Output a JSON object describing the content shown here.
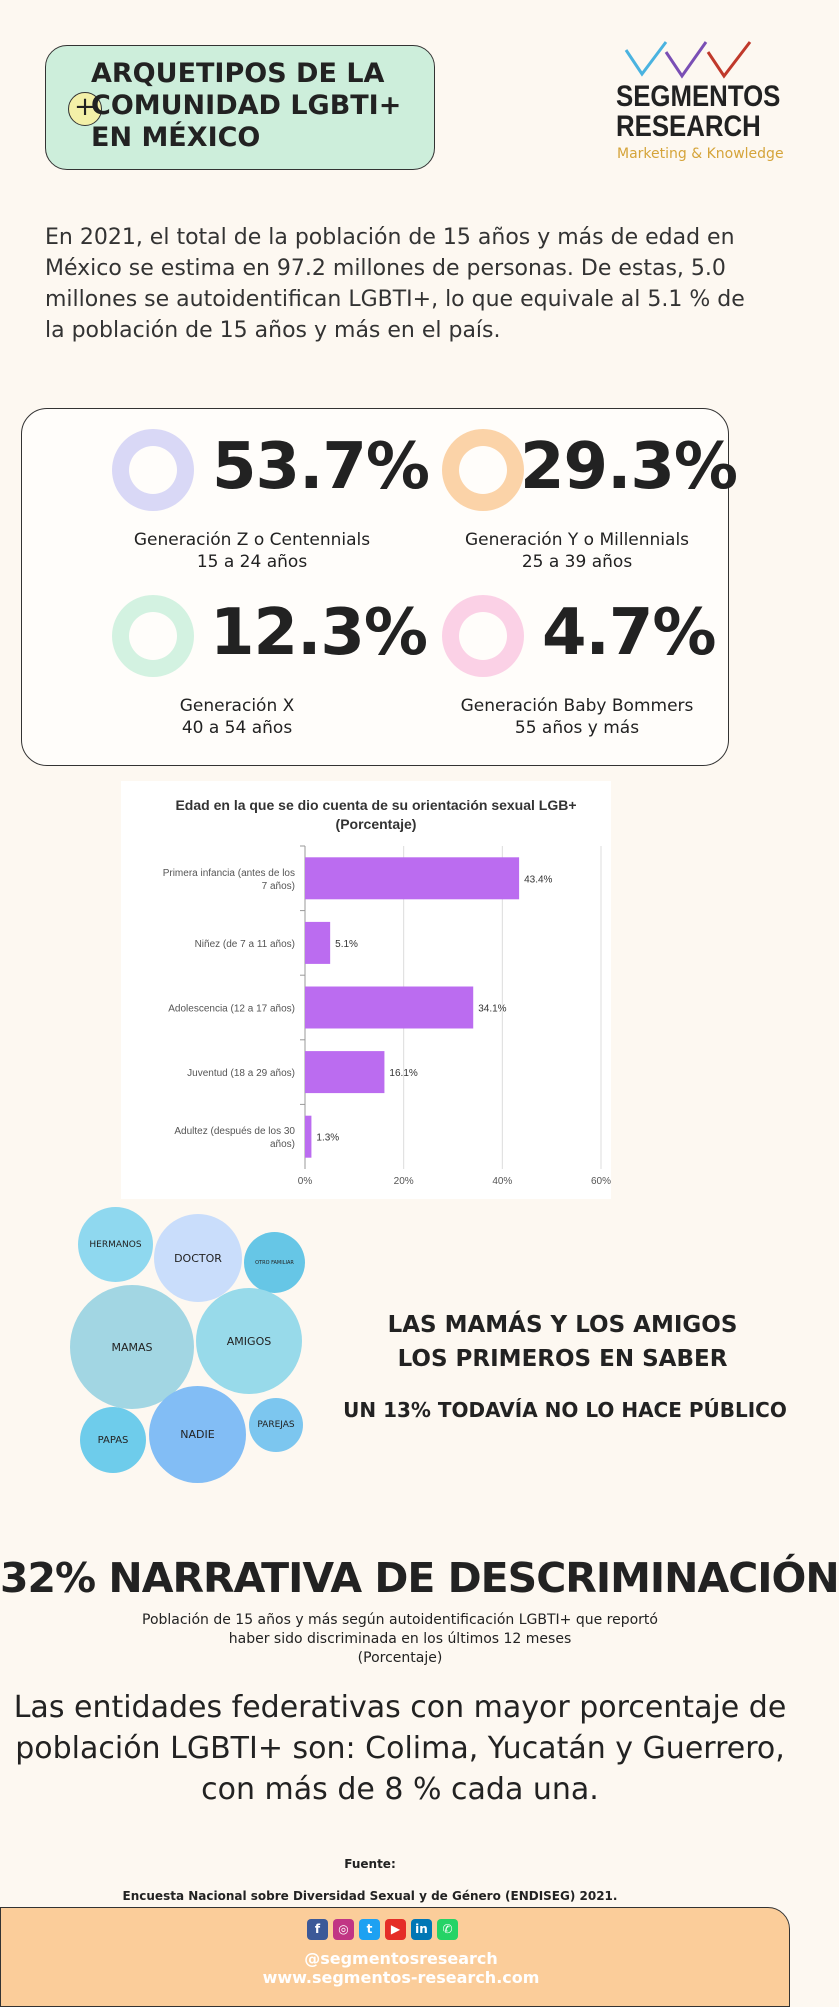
{
  "title": {
    "lines": [
      "ARQUETIPOS DE LA",
      "COMUNIDAD LGBTI+",
      "EN MÉXICO"
    ],
    "icon": "plus-circle-icon"
  },
  "logo": {
    "name_line1": "SEGMENTOS",
    "name_line2": "RESEARCH",
    "tagline": "Marketing & Knowledge",
    "check_colors": [
      "#4ab3e0",
      "#7a4fb5",
      "#c0392b"
    ]
  },
  "intro": "En 2021, el total de la población de 15 años y más de edad en México se estima en 97.2 millones de personas. De estas, 5.0 millones se autoidentifican LGBTI+, lo que equivale al 5.1 % de la población de 15 años y más en el país.",
  "generations": [
    {
      "pct": "53.7%",
      "name": "Generación Z o Centennials",
      "ages": "15 a 24 años",
      "color": "#d9d8f6"
    },
    {
      "pct": "29.3%",
      "name": "Generación Y o Millennials",
      "ages": "25 a 39 años",
      "color": "#fbd3a8"
    },
    {
      "pct": "12.3%",
      "name": "Generación X",
      "ages": "40 a 54 años",
      "color": "#d3f2e1"
    },
    {
      "pct": "4.7%",
      "name": "Generación Baby Bommers",
      "ages": "55 años y más",
      "color": "#fbd1e6"
    }
  ],
  "chart_data": {
    "type": "bar",
    "orientation": "horizontal",
    "title": "Edad en la que se dio cuenta de su orientación sexual LGB+",
    "subtitle": "(Porcentaje)",
    "categories": [
      [
        "Primera infancia (antes de los",
        "7 años)"
      ],
      [
        "Niñez (de 7 a 11 años)"
      ],
      [
        "Adolescencia (12 a 17 años)"
      ],
      [
        "Juventud (18 a 29 años)"
      ],
      [
        "Adultez (después de los 30",
        "años)"
      ]
    ],
    "values": [
      43.4,
      5.1,
      34.1,
      16.1,
      1.3
    ],
    "value_labels": [
      "43.4%",
      "5.1%",
      "34.1%",
      "16.1%",
      "1.3%"
    ],
    "xticks": [
      "0%",
      "20%",
      "40%",
      "60%"
    ],
    "xlim": [
      0,
      60
    ],
    "bar_color": "#bb6cf0",
    "grid": true
  },
  "bubbles": [
    {
      "label": "HERMANOS",
      "color": "#8fd8ef"
    },
    {
      "label": "DOCTOR",
      "color": "#c9ddfb"
    },
    {
      "label": "OTRO FAMILIAR",
      "color": "#66c6e6"
    },
    {
      "label": "MAMAS",
      "color": "#a2d6e3"
    },
    {
      "label": "AMIGOS",
      "color": "#98daea"
    },
    {
      "label": "PAPAS",
      "color": "#6ecceb"
    },
    {
      "label": "NADIE",
      "color": "#82bdf5"
    },
    {
      "label": "PAREJAS",
      "color": "#7cc6ef"
    }
  ],
  "mamas": {
    "line1": "LAS MAMÁS Y LOS AMIGOS",
    "line2": "LOS PRIMEROS EN SABER",
    "sub": "UN 13% TODAVÍA NO LO HACE PÚBLICO"
  },
  "discrimination": {
    "title": "32% NARRATIVA DE DESCRIMINACIÓN",
    "sub_line1": "Población de 15 años y más según autoidentificación LGBTI+ que reportó",
    "sub_line2": "haber sido discriminada en los últimos 12 meses",
    "sub_line3": "(Porcentaje)"
  },
  "entities": "Las entidades federativas con mayor porcentaje de población LGBTI+ son: Colima, Yucatán y Guerrero, con más de 8 % cada una.",
  "source": {
    "label": "Fuente:",
    "text": "Encuesta Nacional sobre Diversidad Sexual y de Género (ENDISEG) 2021."
  },
  "footer": {
    "social": [
      {
        "name": "facebook-icon",
        "glyph": "f",
        "color": "#3b5998"
      },
      {
        "name": "instagram-icon",
        "glyph": "◎",
        "color": "#c13584"
      },
      {
        "name": "twitter-icon",
        "glyph": "t",
        "color": "#1da1f2"
      },
      {
        "name": "youtube-icon",
        "glyph": "▶",
        "color": "#e52d27"
      },
      {
        "name": "linkedin-icon",
        "glyph": "in",
        "color": "#0077b5"
      },
      {
        "name": "whatsapp-icon",
        "glyph": "✆",
        "color": "#25d366"
      }
    ],
    "handle": "@segmentosresearch",
    "site": "www.segmentos-research.com"
  }
}
